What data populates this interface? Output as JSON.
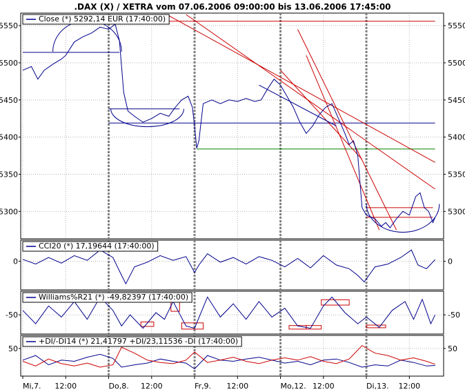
{
  "title": ".DAX (X) / XETRA vom 07.06.2006 09:00:00 bis 13.06.2006 17:45:00",
  "colors": {
    "series": "#00008b",
    "support": "#00008b",
    "resistance": "#cc0000",
    "green_level": "#008000",
    "neg_di": "#cc0000",
    "box": "#cc0000",
    "day_separator": "#808080",
    "grid": "#b4b4b4"
  },
  "chart_data": [
    {
      "type": "line",
      "panel": "price",
      "legend": "Close (*) 5292,14 EUR (17:40:00)",
      "x": [
        "Mi,7.",
        "12:00",
        "Do,8.",
        "12:00",
        "Fr,9.",
        "12:00",
        "Mo,12.",
        "12:00",
        "Di,13.",
        "12:00"
      ],
      "ylim": [
        5265,
        5565
      ],
      "yticks": [
        5300,
        5350,
        5400,
        5450,
        5500,
        5550
      ],
      "ytick_labels": [
        "5300",
        "5350",
        "5400",
        "5450",
        "5500",
        "5550"
      ],
      "grid": true,
      "series": [
        {
          "values": [
            [
              0,
              5490
            ],
            [
              0.2,
              5495
            ],
            [
              0.35,
              5478
            ],
            [
              0.5,
              5490
            ],
            [
              0.7,
              5498
            ],
            [
              0.9,
              5505
            ],
            [
              1.0,
              5510
            ],
            [
              1.2,
              5528
            ],
            [
              1.4,
              5535
            ],
            [
              1.6,
              5540
            ],
            [
              1.8,
              5548
            ],
            [
              2.0,
              5545
            ],
            [
              2.15,
              5552
            ],
            [
              2.25,
              5530
            ],
            [
              2.3,
              5495
            ],
            [
              2.35,
              5460
            ],
            [
              2.45,
              5435
            ],
            [
              2.6,
              5428
            ],
            [
              2.8,
              5420
            ],
            [
              3.0,
              5425
            ],
            [
              3.2,
              5432
            ],
            [
              3.4,
              5428
            ],
            [
              3.55,
              5440
            ],
            [
              3.7,
              5450
            ],
            [
              3.85,
              5455
            ],
            [
              3.95,
              5440
            ],
            [
              4.0,
              5415
            ],
            [
              4.05,
              5385
            ],
            [
              4.1,
              5395
            ],
            [
              4.2,
              5445
            ],
            [
              4.4,
              5450
            ],
            [
              4.6,
              5445
            ],
            [
              4.8,
              5450
            ],
            [
              5.0,
              5448
            ],
            [
              5.2,
              5452
            ],
            [
              5.4,
              5448
            ],
            [
              5.55,
              5450
            ],
            [
              5.7,
              5465
            ],
            [
              5.85,
              5478
            ],
            [
              6.0,
              5470
            ],
            [
              6.15,
              5455
            ],
            [
              6.3,
              5440
            ],
            [
              6.45,
              5420
            ],
            [
              6.6,
              5405
            ],
            [
              6.75,
              5415
            ],
            [
              6.9,
              5430
            ],
            [
              7.05,
              5440
            ],
            [
              7.2,
              5445
            ],
            [
              7.35,
              5425
            ],
            [
              7.5,
              5405
            ],
            [
              7.6,
              5390
            ],
            [
              7.7,
              5395
            ],
            [
              7.8,
              5375
            ],
            [
              7.85,
              5340
            ],
            [
              7.9,
              5305
            ],
            [
              8.0,
              5295
            ],
            [
              8.2,
              5290
            ],
            [
              8.35,
              5280
            ],
            [
              8.45,
              5285
            ],
            [
              8.55,
              5278
            ],
            [
              8.7,
              5290
            ],
            [
              8.85,
              5300
            ],
            [
              9.0,
              5295
            ],
            [
              9.15,
              5320
            ],
            [
              9.25,
              5325
            ],
            [
              9.35,
              5305
            ],
            [
              9.45,
              5300
            ],
            [
              9.55,
              5285
            ],
            [
              9.6,
              5292
            ]
          ]
        }
      ],
      "horizontal_levels": [
        {
          "value": 5514,
          "x0": 0.0,
          "x1": 2.25,
          "color": "support"
        },
        {
          "value": 5438,
          "x0": 2.0,
          "x1": 3.65,
          "color": "support"
        },
        {
          "value": 5419,
          "x0": 2.0,
          "x1": 9.6,
          "color": "support"
        },
        {
          "value": 5384,
          "x0": 4.05,
          "x1": 9.6,
          "color": "green_level"
        },
        {
          "value": 5556,
          "x0": 3.4,
          "x1": 9.6,
          "color": "resistance"
        },
        {
          "value": 5305,
          "x0": 8.0,
          "x1": 9.55,
          "color": "resistance"
        },
        {
          "value": 5292,
          "x0": 8.0,
          "x1": 9.55,
          "color": "resistance"
        }
      ],
      "trendlines": [
        {
          "from": [
            3.35,
            5565
          ],
          "to": [
            9.6,
            5366
          ],
          "color": "resistance"
        },
        {
          "from": [
            3.8,
            5565
          ],
          "to": [
            9.6,
            5330
          ],
          "color": "resistance"
        },
        {
          "from": [
            6.0,
            5490
          ],
          "to": [
            7.9,
            5370
          ],
          "color": "resistance"
        },
        {
          "from": [
            6.4,
            5545
          ],
          "to": [
            8.7,
            5275
          ],
          "color": "resistance"
        },
        {
          "from": [
            6.6,
            5510
          ],
          "to": [
            8.3,
            5275
          ],
          "color": "resistance"
        },
        {
          "from": [
            5.5,
            5470
          ],
          "to": [
            7.3,
            5415
          ],
          "color": "support"
        }
      ],
      "arcs": [
        {
          "cx": 1.5,
          "cy": 5515,
          "rx": 0.8,
          "ry": 42,
          "upper": true
        },
        {
          "cx": 2.9,
          "cy": 5438,
          "rx": 0.85,
          "ry": 24,
          "upper": false
        },
        {
          "cx": 8.85,
          "cy": 5310,
          "rx": 0.85,
          "ry": 38,
          "upper": false
        }
      ]
    },
    {
      "type": "line",
      "panel": "cci",
      "legend": "CCI20 (*) 17,19644 (17:40:00)",
      "ylim": [
        -290,
        210
      ],
      "yticks": [
        0
      ],
      "ytick_labels": [
        "0"
      ],
      "grid": true,
      "series": [
        {
          "values": [
            [
              0,
              20
            ],
            [
              0.3,
              -30
            ],
            [
              0.6,
              40
            ],
            [
              0.9,
              -20
            ],
            [
              1.2,
              60
            ],
            [
              1.5,
              10
            ],
            [
              1.8,
              120
            ],
            [
              2.1,
              40
            ],
            [
              2.3,
              -150
            ],
            [
              2.4,
              -240
            ],
            [
              2.6,
              -60
            ],
            [
              2.9,
              -10
            ],
            [
              3.2,
              60
            ],
            [
              3.5,
              10
            ],
            [
              3.8,
              50
            ],
            [
              4.0,
              -120
            ],
            [
              4.1,
              -40
            ],
            [
              4.3,
              80
            ],
            [
              4.6,
              -10
            ],
            [
              4.9,
              40
            ],
            [
              5.2,
              -30
            ],
            [
              5.5,
              50
            ],
            [
              5.8,
              10
            ],
            [
              6.1,
              -60
            ],
            [
              6.4,
              30
            ],
            [
              6.7,
              -70
            ],
            [
              7.0,
              60
            ],
            [
              7.3,
              -40
            ],
            [
              7.6,
              -80
            ],
            [
              7.8,
              -150
            ],
            [
              7.95,
              -220
            ],
            [
              8.2,
              -60
            ],
            [
              8.5,
              -30
            ],
            [
              8.8,
              40
            ],
            [
              9.05,
              120
            ],
            [
              9.2,
              -40
            ],
            [
              9.4,
              -80
            ],
            [
              9.6,
              17
            ]
          ]
        }
      ]
    },
    {
      "type": "line",
      "panel": "williams",
      "legend": "Williams%R21 (*) -49,82397 (17:40:00)",
      "ylim": [
        -90,
        0
      ],
      "yticks": [
        -50
      ],
      "ytick_labels": [
        "-50"
      ],
      "grid": true,
      "series": [
        {
          "values": [
            [
              0,
              -40
            ],
            [
              0.3,
              -70
            ],
            [
              0.6,
              -30
            ],
            [
              0.9,
              -55
            ],
            [
              1.2,
              -20
            ],
            [
              1.5,
              -60
            ],
            [
              1.8,
              -10
            ],
            [
              2.1,
              -40
            ],
            [
              2.3,
              -75
            ],
            [
              2.5,
              -50
            ],
            [
              2.8,
              -80
            ],
            [
              3.1,
              -45
            ],
            [
              3.3,
              -60
            ],
            [
              3.5,
              -20
            ],
            [
              3.8,
              -75
            ],
            [
              4.0,
              -80
            ],
            [
              4.3,
              -10
            ],
            [
              4.6,
              -55
            ],
            [
              4.9,
              -25
            ],
            [
              5.2,
              -60
            ],
            [
              5.5,
              -20
            ],
            [
              5.8,
              -55
            ],
            [
              6.1,
              -35
            ],
            [
              6.4,
              -75
            ],
            [
              6.7,
              -80
            ],
            [
              7.0,
              -30
            ],
            [
              7.2,
              -10
            ],
            [
              7.5,
              -45
            ],
            [
              7.8,
              -70
            ],
            [
              8.0,
              -55
            ],
            [
              8.3,
              -78
            ],
            [
              8.6,
              -40
            ],
            [
              8.9,
              -20
            ],
            [
              9.1,
              -60
            ],
            [
              9.3,
              -15
            ],
            [
              9.5,
              -70
            ],
            [
              9.6,
              -50
            ]
          ]
        }
      ],
      "boxes": [
        {
          "x0": 3.45,
          "x1": 3.65,
          "y0": -15,
          "y1": -42
        },
        {
          "x0": 2.75,
          "x1": 3.05,
          "y0": -66,
          "y1": -76
        },
        {
          "x0": 3.7,
          "x1": 4.2,
          "y0": -68,
          "y1": -82
        },
        {
          "x0": 6.2,
          "x1": 6.6,
          "y0": -74,
          "y1": -82
        },
        {
          "x0": 6.6,
          "x1": 6.95,
          "y0": -74,
          "y1": -82
        },
        {
          "x0": 6.95,
          "x1": 7.6,
          "y0": -16,
          "y1": -28
        },
        {
          "x0": 8.0,
          "x1": 8.45,
          "y0": -73,
          "y1": -79
        }
      ]
    },
    {
      "type": "line",
      "panel": "dmi",
      "legend": "+DI/-DI14 (*) 21,41797 +DI/23,11536 -DI (17:40:00)",
      "ylim": [
        5,
        70
      ],
      "yticks": [
        50
      ],
      "ytick_labels": [
        "50"
      ],
      "grid": true,
      "series": [
        {
          "values": [
            [
              0,
              30
            ],
            [
              0.3,
              38
            ],
            [
              0.6,
              22
            ],
            [
              0.9,
              30
            ],
            [
              1.2,
              28
            ],
            [
              1.5,
              35
            ],
            [
              1.8,
              40
            ],
            [
              2.1,
              33
            ],
            [
              2.3,
              18
            ],
            [
              2.6,
              22
            ],
            [
              2.9,
              25
            ],
            [
              3.2,
              32
            ],
            [
              3.5,
              28
            ],
            [
              3.8,
              25
            ],
            [
              4.0,
              15
            ],
            [
              4.3,
              38
            ],
            [
              4.6,
              30
            ],
            [
              4.9,
              28
            ],
            [
              5.2,
              32
            ],
            [
              5.5,
              35
            ],
            [
              5.8,
              30
            ],
            [
              6.1,
              25
            ],
            [
              6.4,
              28
            ],
            [
              6.7,
              22
            ],
            [
              7.0,
              30
            ],
            [
              7.3,
              32
            ],
            [
              7.6,
              26
            ],
            [
              7.9,
              18
            ],
            [
              8.2,
              22
            ],
            [
              8.5,
              20
            ],
            [
              8.8,
              30
            ],
            [
              9.1,
              26
            ],
            [
              9.4,
              20
            ],
            [
              9.6,
              21
            ]
          ]
        },
        {
          "color": "neg_di",
          "values": [
            [
              0,
              28
            ],
            [
              0.3,
              20
            ],
            [
              0.6,
              32
            ],
            [
              0.9,
              24
            ],
            [
              1.2,
              20
            ],
            [
              1.5,
              25
            ],
            [
              1.8,
              18
            ],
            [
              2.1,
              22
            ],
            [
              2.3,
              52
            ],
            [
              2.6,
              42
            ],
            [
              2.9,
              30
            ],
            [
              3.2,
              26
            ],
            [
              3.5,
              24
            ],
            [
              3.8,
              30
            ],
            [
              4.0,
              44
            ],
            [
              4.3,
              26
            ],
            [
              4.6,
              30
            ],
            [
              4.9,
              35
            ],
            [
              5.2,
              28
            ],
            [
              5.5,
              24
            ],
            [
              5.8,
              30
            ],
            [
              6.1,
              34
            ],
            [
              6.4,
              30
            ],
            [
              6.7,
              36
            ],
            [
              7.0,
              28
            ],
            [
              7.3,
              24
            ],
            [
              7.6,
              32
            ],
            [
              7.9,
              55
            ],
            [
              8.2,
              42
            ],
            [
              8.5,
              38
            ],
            [
              8.8,
              30
            ],
            [
              9.1,
              34
            ],
            [
              9.4,
              28
            ],
            [
              9.6,
              23
            ]
          ]
        }
      ]
    }
  ]
}
